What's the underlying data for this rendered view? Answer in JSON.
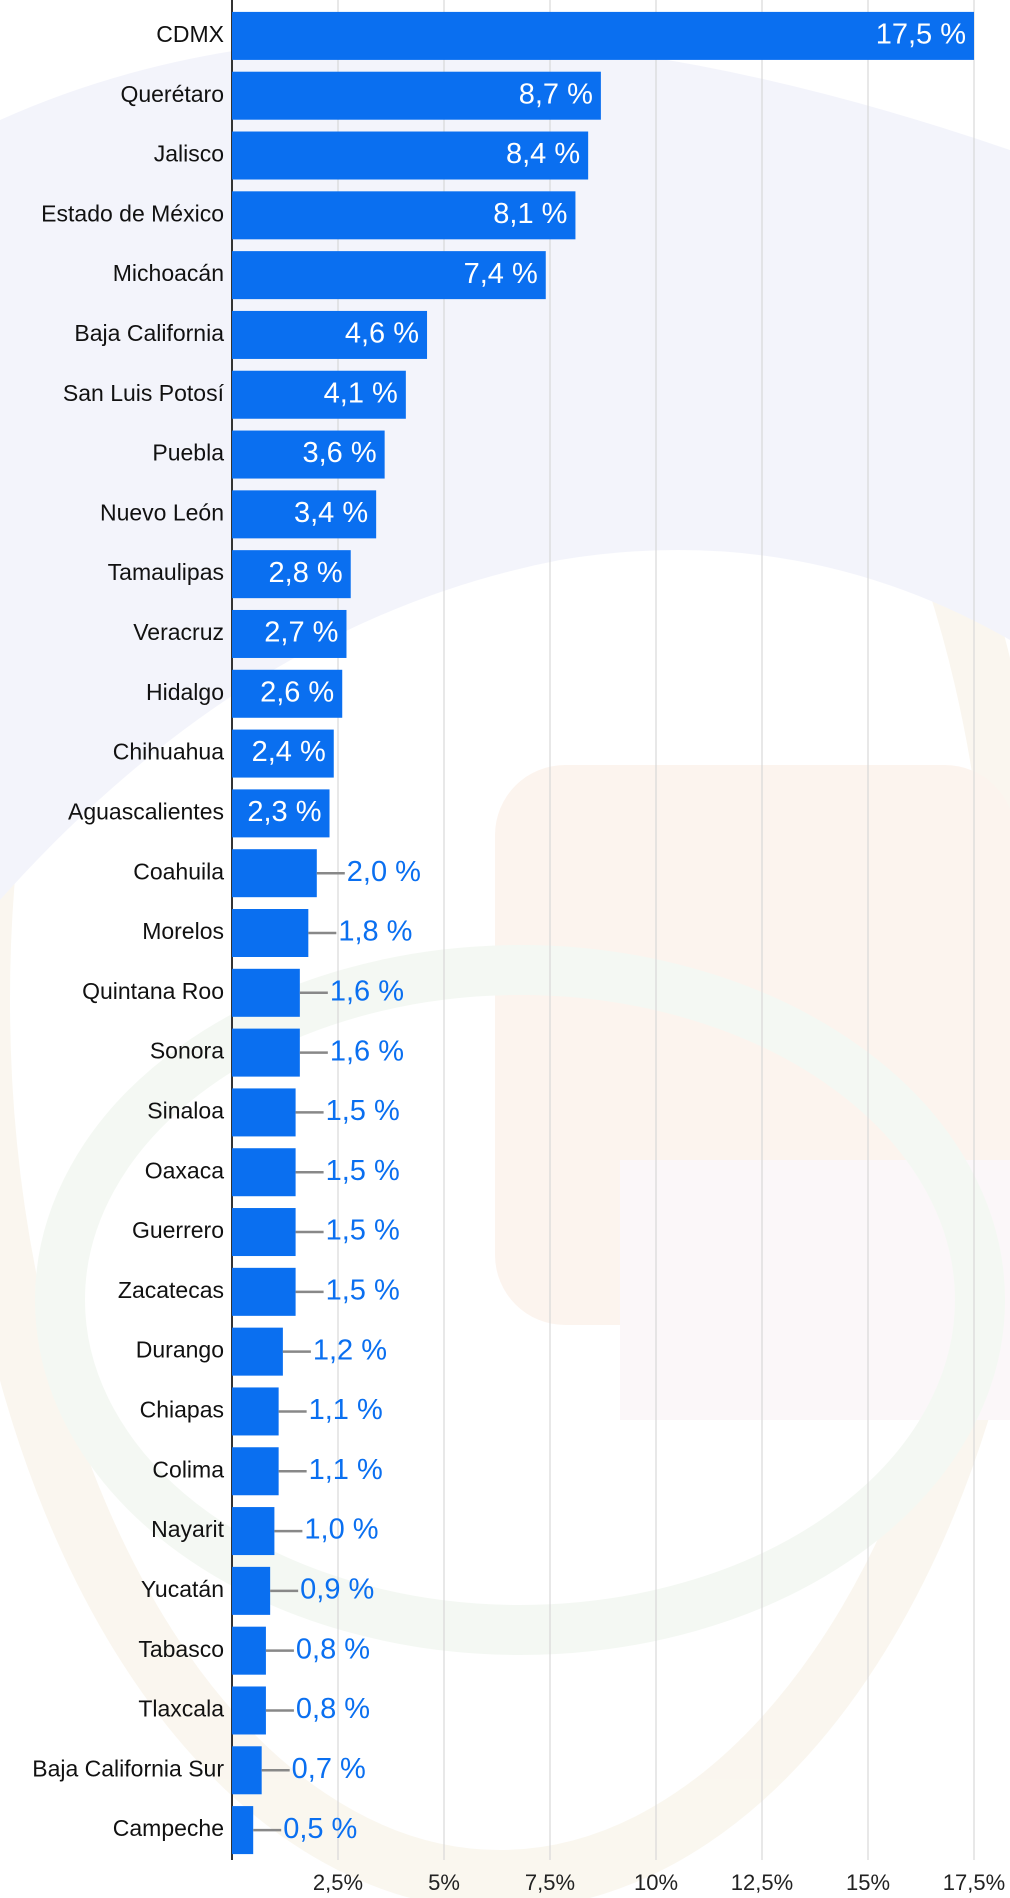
{
  "chart_data": {
    "type": "barh",
    "categories": [
      "CDMX",
      "Querétaro",
      "Jalisco",
      "Estado de México",
      "Michoacán",
      "Baja California",
      "San Luis Potosí",
      "Puebla",
      "Nuevo León",
      "Tamaulipas",
      "Veracruz",
      "Hidalgo",
      "Chihuahua",
      "Aguascalientes",
      "Coahuila",
      "Morelos",
      "Quintana Roo",
      "Sonora",
      "Sinaloa",
      "Oaxaca",
      "Guerrero",
      "Zacatecas",
      "Durango",
      "Chiapas",
      "Colima",
      "Nayarit",
      "Yucatán",
      "Tabasco",
      "Tlaxcala",
      "Baja California Sur",
      "Campeche"
    ],
    "values": [
      17.5,
      8.7,
      8.4,
      8.1,
      7.4,
      4.6,
      4.1,
      3.6,
      3.4,
      2.8,
      2.7,
      2.6,
      2.4,
      2.3,
      2.0,
      1.8,
      1.6,
      1.6,
      1.5,
      1.5,
      1.5,
      1.5,
      1.2,
      1.1,
      1.1,
      1.0,
      0.9,
      0.8,
      0.8,
      0.7,
      0.5
    ],
    "value_labels": [
      "17,5 %",
      "8,7 %",
      "8,4 %",
      "8,1 %",
      "7,4 %",
      "4,6 %",
      "4,1 %",
      "3,6 %",
      "3,4 %",
      "2,8 %",
      "2,7 %",
      "2,6 %",
      "2,4 %",
      "2,3 %",
      "2,0 %",
      "1,8 %",
      "1,6 %",
      "1,6 %",
      "1,5 %",
      "1,5 %",
      "1,5 %",
      "1,5 %",
      "1,2 %",
      "1,1 %",
      "1,1 %",
      "1,0 %",
      "0,9 %",
      "0,8 %",
      "0,8 %",
      "0,7 %",
      "0,5 %"
    ],
    "color": "#0a6ff0",
    "xlim": [
      0,
      17.5
    ],
    "xticks": [
      {
        "value": 2.5,
        "label": "2,5%"
      },
      {
        "value": 5,
        "label": "5%"
      },
      {
        "value": 7.5,
        "label": "7,5%"
      },
      {
        "value": 10,
        "label": "10%"
      },
      {
        "value": 12.5,
        "label": "12,5%"
      },
      {
        "value": 15,
        "label": "15%"
      },
      {
        "value": 17.5,
        "label": "17,5%"
      }
    ],
    "grid": true
  }
}
